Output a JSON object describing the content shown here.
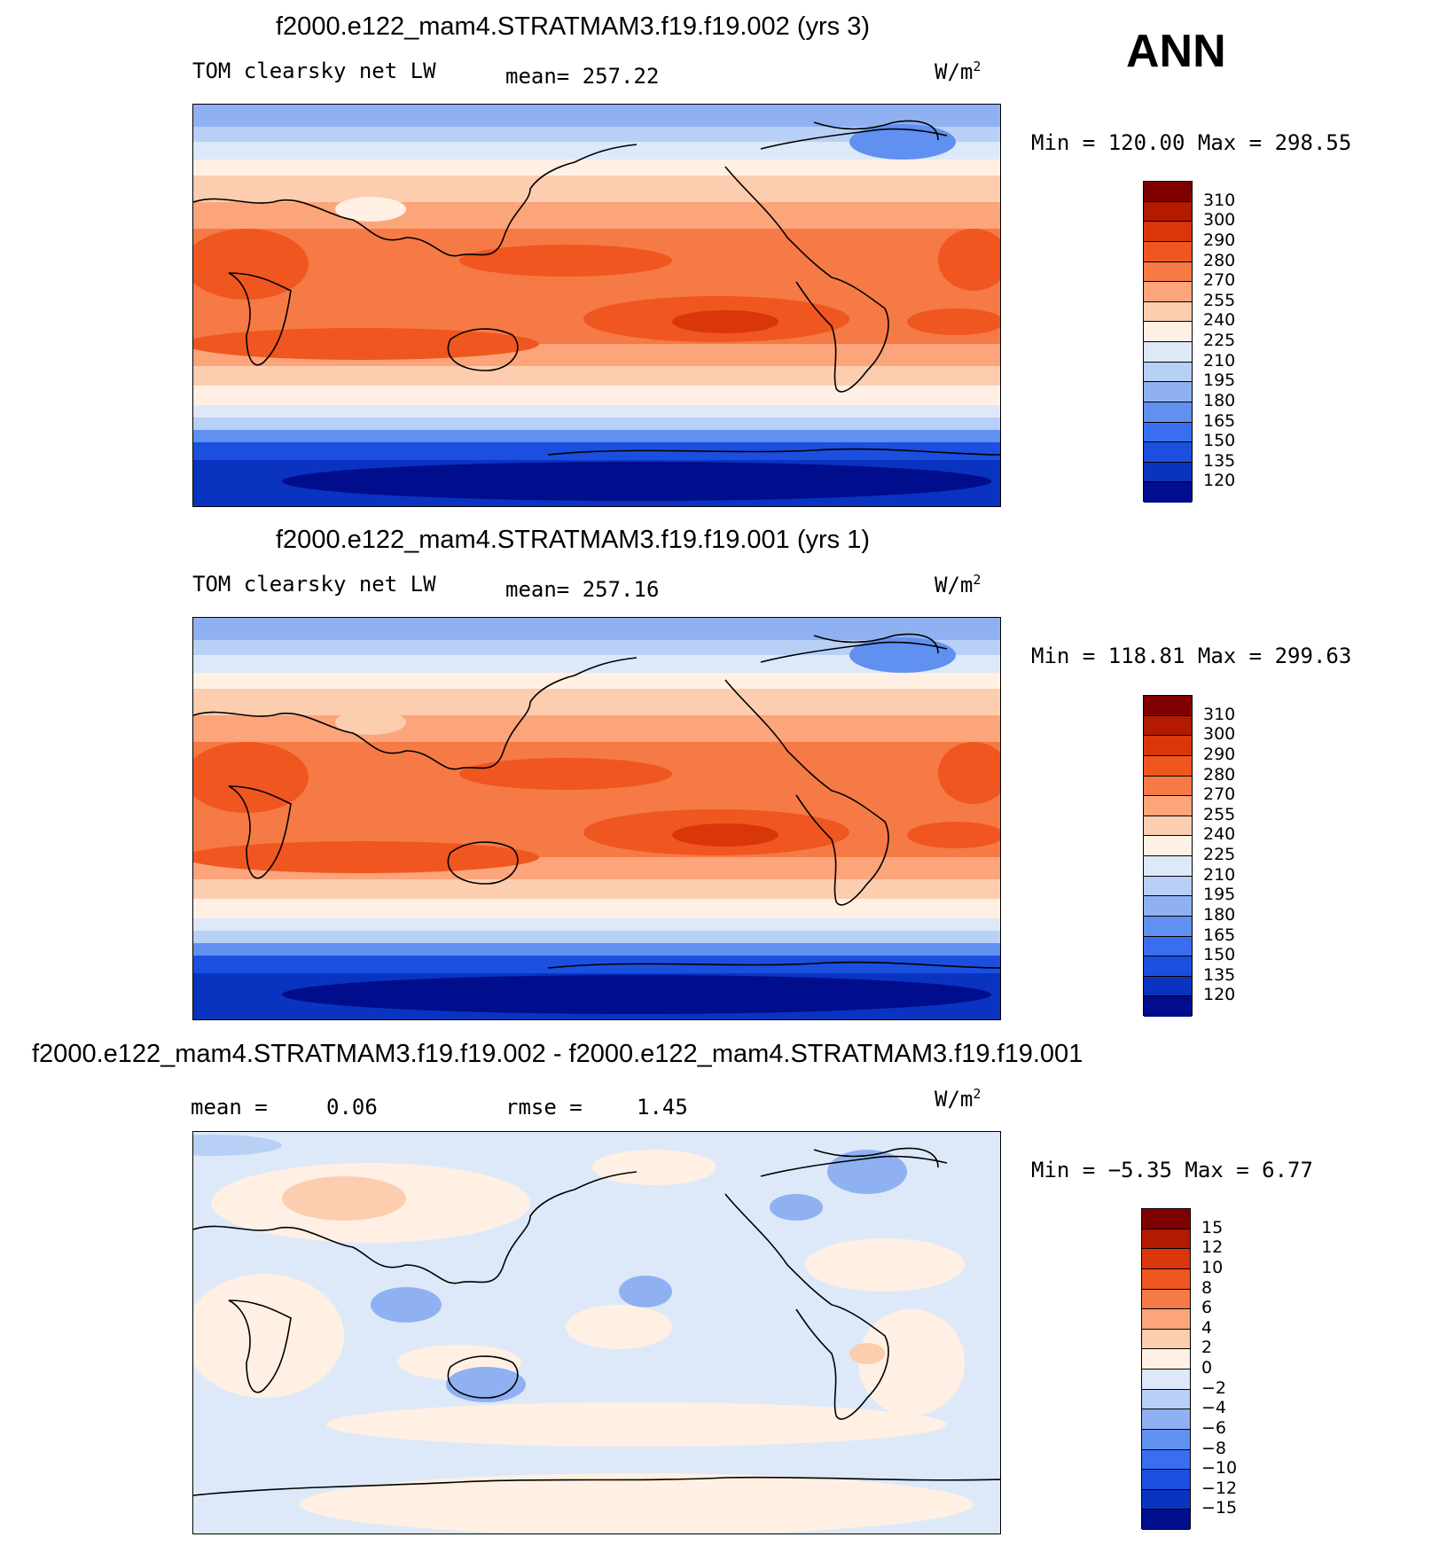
{
  "season_label": "ANN",
  "panels": [
    {
      "title": "f2000.e122_mam4.STRATMAM3.f19.f19.002 (yrs 3)",
      "variable": "TOM clearsky net LW",
      "mean_text": "mean= 257.22",
      "units": "W/m",
      "units_sup": "2",
      "min_label": "Min",
      "min_value": "120.00",
      "max_label": "Max",
      "max_value": "298.55",
      "colorbar": {
        "colors": [
          "#7f0000",
          "#b31a00",
          "#d9360a",
          "#f0561f",
          "#f57a45",
          "#fca47a",
          "#fdcdb0",
          "#fff0e3",
          "#dde9f8",
          "#b8d0f5",
          "#8fb1f2",
          "#6090f0",
          "#3a6ef0",
          "#1a4fe0",
          "#0a33c0",
          "#000d8c"
        ],
        "labels": [
          "310",
          "300",
          "290",
          "280",
          "270",
          "255",
          "240",
          "225",
          "210",
          "195",
          "180",
          "165",
          "150",
          "135",
          "120"
        ]
      }
    },
    {
      "title": "f2000.e122_mam4.STRATMAM3.f19.f19.001 (yrs 1)",
      "variable": "TOM clearsky net LW",
      "mean_text": "mean= 257.16",
      "units": "W/m",
      "units_sup": "2",
      "min_label": "Min",
      "min_value": "118.81",
      "max_label": "Max",
      "max_value": "299.63",
      "colorbar": {
        "colors": [
          "#7f0000",
          "#b31a00",
          "#d9360a",
          "#f0561f",
          "#f57a45",
          "#fca47a",
          "#fdcdb0",
          "#fff0e3",
          "#dde9f8",
          "#b8d0f5",
          "#8fb1f2",
          "#6090f0",
          "#3a6ef0",
          "#1a4fe0",
          "#0a33c0",
          "#000d8c"
        ],
        "labels": [
          "310",
          "300",
          "290",
          "280",
          "270",
          "255",
          "240",
          "225",
          "210",
          "195",
          "180",
          "165",
          "150",
          "135",
          "120"
        ]
      }
    },
    {
      "title": "f2000.e122_mam4.STRATMAM3.f19.f19.002 - f2000.e122_mam4.STRATMAM3.f19.f19.001",
      "mean_label": "mean =",
      "mean_value": "0.06",
      "rmse_label": "rmse =",
      "rmse_value": "1.45",
      "units": "W/m",
      "units_sup": "2",
      "min_label": "Min",
      "min_value": "−5.35",
      "max_label": "Max",
      "max_value": "6.77",
      "colorbar": {
        "colors": [
          "#7f0000",
          "#b31a00",
          "#d9360a",
          "#f0561f",
          "#f57a45",
          "#fca47a",
          "#fdcdb0",
          "#fff0e3",
          "#dde9f8",
          "#b8d0f5",
          "#8fb1f2",
          "#6090f0",
          "#3a6ef0",
          "#1a4fe0",
          "#0a33c0",
          "#000d8c"
        ],
        "labels": [
          "15",
          "12",
          "10",
          "8",
          "6",
          "4",
          "2",
          "0",
          "−2",
          "−4",
          "−6",
          "−8",
          "−10",
          "−12",
          "−15"
        ]
      }
    }
  ]
}
